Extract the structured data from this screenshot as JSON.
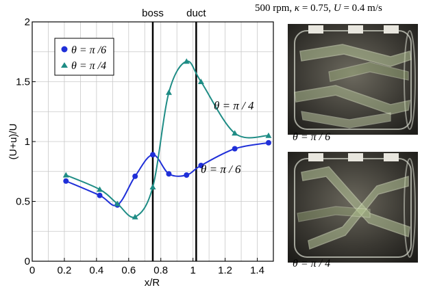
{
  "conditions": {
    "prefix": "500 rpm, ",
    "kappa_symbol": "κ",
    "kappa_value": " = 0.75, ",
    "u_symbol": "U",
    "u_value": " = 0.4 m/s"
  },
  "photos": [
    {
      "caption": "θ = π / 6"
    },
    {
      "caption": "θ = π / 4"
    }
  ],
  "colors": {
    "series1": "#1f2fd8",
    "series2": "#1e8c85",
    "grid": "#c8c8c8",
    "lines": "#000000"
  },
  "chart_data": {
    "type": "line",
    "xlabel": "x/R",
    "ylabel": "(U+u)/U",
    "xlim": [
      0,
      1.5
    ],
    "ylim": [
      0,
      2
    ],
    "xticks": [
      "0",
      "0.2",
      "0.4",
      "0.6",
      "0.8",
      "1",
      "1.2",
      "1.4"
    ],
    "yticks": [
      "0",
      "0.5",
      "1",
      "1.5",
      "2"
    ],
    "grid": true,
    "legend_position": "top-left",
    "vertical_lines": [
      {
        "label": "boss",
        "x": 0.75
      },
      {
        "label": "duct",
        "x": 1.02
      }
    ],
    "series": [
      {
        "name": "θ = π /6",
        "marker": "circle",
        "curve_label": "θ = π / 6",
        "x": [
          0.21,
          0.42,
          0.53,
          0.64,
          0.75,
          0.85,
          0.96,
          1.05,
          1.26,
          1.47
        ],
        "y": [
          0.67,
          0.55,
          0.47,
          0.71,
          0.89,
          0.73,
          0.72,
          0.8,
          0.94,
          0.99
        ]
      },
      {
        "name": "θ = π /4",
        "marker": "triangle",
        "curve_label": "θ = π / 4",
        "x": [
          0.21,
          0.42,
          0.53,
          0.64,
          0.75,
          0.85,
          0.96,
          1.05,
          1.26,
          1.47
        ],
        "y": [
          0.72,
          0.6,
          0.48,
          0.37,
          0.62,
          1.41,
          1.67,
          1.5,
          1.07,
          1.05
        ]
      }
    ]
  }
}
